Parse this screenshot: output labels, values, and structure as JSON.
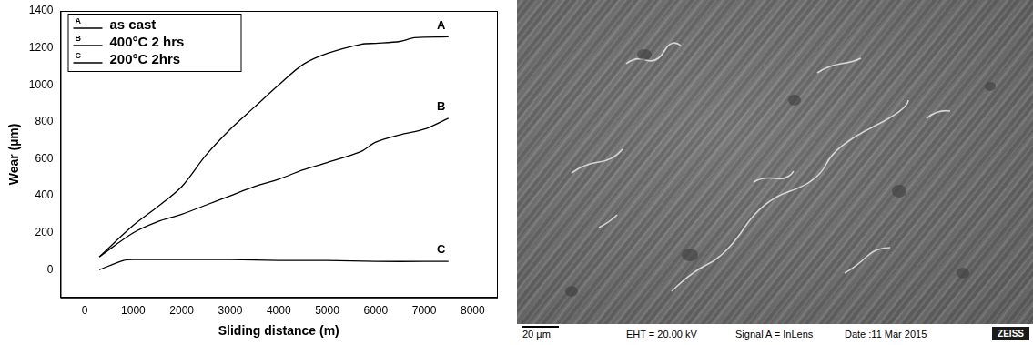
{
  "chart_data": {
    "type": "line",
    "x_label": "Sliding distance (m)",
    "y_label": "Wear (µm)",
    "xlim": [
      -500,
      8500
    ],
    "xticks": [
      0,
      1000,
      2000,
      3000,
      4000,
      5000,
      6000,
      7000,
      8000
    ],
    "ylim": [
      -150,
      1400
    ],
    "yticks": [
      0,
      200,
      400,
      600,
      800,
      1000,
      1200,
      1400
    ],
    "grid": false,
    "legend": "upper left",
    "series": [
      {
        "name": "as cast",
        "label": "A",
        "color": "#000000",
        "x": [
          300,
          1000,
          1500,
          2000,
          2500,
          3000,
          3500,
          4000,
          4500,
          5000,
          5700,
          6000,
          6500,
          6800,
          7500
        ],
        "values": [
          70,
          240,
          340,
          450,
          620,
          760,
          880,
          1000,
          1110,
          1170,
          1220,
          1225,
          1235,
          1255,
          1260
        ]
      },
      {
        "name": "400°C 2 hrs",
        "label": "B",
        "color": "#000000",
        "x": [
          300,
          1000,
          1500,
          2000,
          2500,
          3000,
          3500,
          4000,
          4500,
          5000,
          5700,
          6000,
          6500,
          7000,
          7500
        ],
        "values": [
          70,
          200,
          260,
          300,
          350,
          400,
          450,
          490,
          540,
          580,
          640,
          690,
          730,
          760,
          820
        ]
      },
      {
        "name": "200°C 2hrs",
        "label": "C",
        "color": "#000000",
        "x": [
          300,
          800,
          1000,
          2000,
          3000,
          4000,
          5000,
          6000,
          7000,
          7500
        ],
        "values": [
          0,
          50,
          55,
          55,
          55,
          50,
          50,
          45,
          45,
          45
        ]
      }
    ]
  },
  "micrograph": {
    "scale_bar": "20 µm",
    "eht": "EHT = 20.00 kV",
    "signal": "Signal A = InLens",
    "date": "Date :11 Mar 2015",
    "brand": "ZEISS"
  }
}
